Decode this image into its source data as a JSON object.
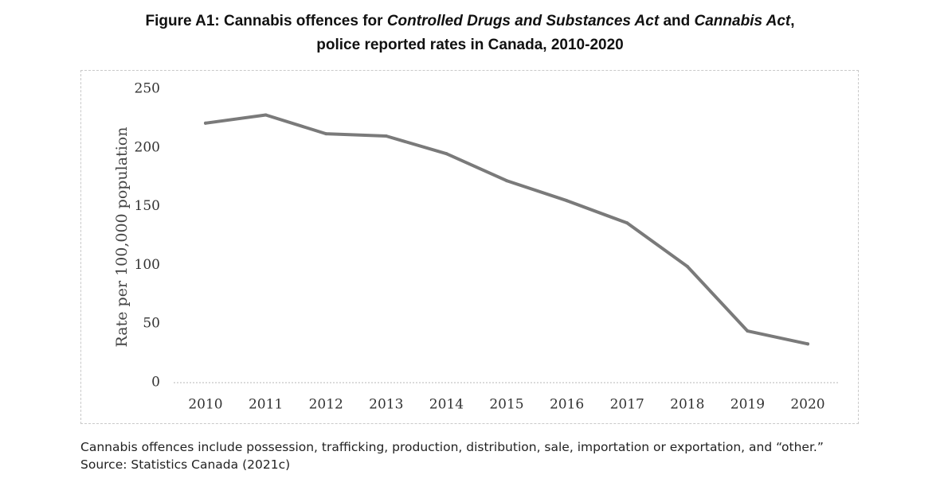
{
  "figure": {
    "title_part1": "Figure A1: Cannabis offences for ",
    "title_italic1": "Controlled Drugs and Substances Act",
    "title_part2": " and ",
    "title_italic2": "Cannabis Act",
    "title_part3": ",",
    "title_line2": "police reported rates in Canada, 2010-2020",
    "note": "Cannabis offences include possession, trafficking, production, distribution, sale, importation or exportation, and “other.”",
    "source": "Source: Statistics Canada (2021c)"
  },
  "chart_data": {
    "type": "line",
    "title": "Figure A1: Cannabis offences for Controlled Drugs and Substances Act and Cannabis Act, police reported rates in Canada, 2010-2020",
    "xlabel": "",
    "ylabel": "Rate per 100,000 population",
    "categories": [
      "2010",
      "2011",
      "2012",
      "2013",
      "2014",
      "2015",
      "2016",
      "2017",
      "2018",
      "2019",
      "2020"
    ],
    "series": [
      {
        "values": [
          221,
          228,
          212,
          210,
          195,
          172,
          155,
          136,
          99,
          44,
          33
        ]
      }
    ],
    "ylim": [
      0,
      250
    ],
    "yticks": [
      0,
      50,
      100,
      150,
      200,
      250
    ],
    "grid": false,
    "legend": "none",
    "line_color": "#7a7a7a",
    "baseline_color": "#cfcfcf"
  }
}
